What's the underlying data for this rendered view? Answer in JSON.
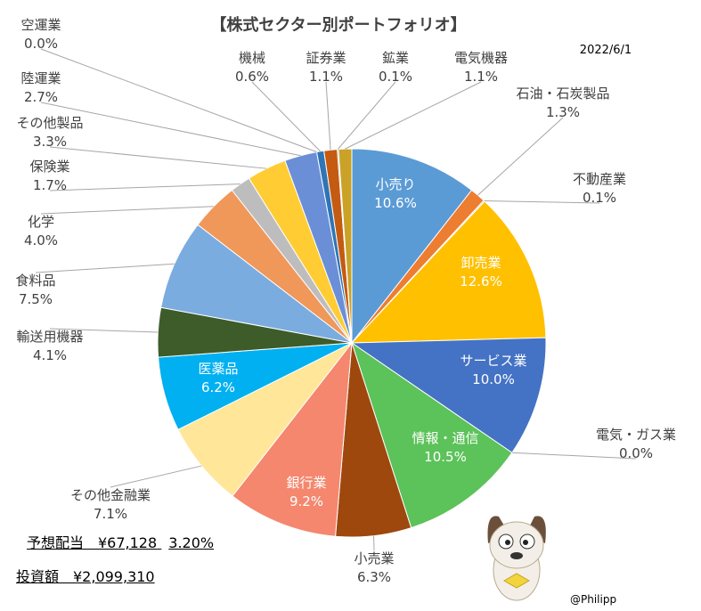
{
  "chart_data": {
    "type": "pie",
    "title": "【株式セクター別ポートフォリオ】",
    "date": "2022/6/1",
    "slices": [
      {
        "label": "小売り",
        "value": 10.6,
        "value_text": "10.6%",
        "color": "#5b9bd5"
      },
      {
        "label": "石油・石炭製品",
        "value": 1.3,
        "value_text": "1.3%",
        "color": "#ed7d31"
      },
      {
        "label": "不動産業",
        "value": 0.1,
        "value_text": "0.1%",
        "color": "#a5a5a5"
      },
      {
        "label": "卸売業",
        "value": 12.6,
        "value_text": "12.6%",
        "color": "#ffc000"
      },
      {
        "label": "サービス業",
        "value": 10.0,
        "value_text": "10.0%",
        "color": "#4472c4"
      },
      {
        "label": "電気・ガス業",
        "value": 0.0,
        "value_text": "0.0%",
        "color": "#70ad47"
      },
      {
        "label": "情報・通信",
        "value": 10.5,
        "value_text": "10.5%",
        "color": "#5cc25a"
      },
      {
        "label": "小売業",
        "value": 6.3,
        "value_text": "6.3%",
        "color": "#9e480e"
      },
      {
        "label": "銀行業",
        "value": 9.2,
        "value_text": "9.2%",
        "color": "#f4876e"
      },
      {
        "label": "その他金融業",
        "value": 7.1,
        "value_text": "7.1%",
        "color": "#ffe699"
      },
      {
        "label": "医薬品",
        "value": 6.2,
        "value_text": "6.2%",
        "color": "#00b0f0"
      },
      {
        "label": "輸送用機器",
        "value": 4.1,
        "value_text": "4.1%",
        "color": "#3d5c2a"
      },
      {
        "label": "食料品",
        "value": 7.5,
        "value_text": "7.5%",
        "color": "#7aace0"
      },
      {
        "label": "化学",
        "value": 4.0,
        "value_text": "4.0%",
        "color": "#f0975a"
      },
      {
        "label": "保険業",
        "value": 1.7,
        "value_text": "1.7%",
        "color": "#bdbdbd"
      },
      {
        "label": "その他製品",
        "value": 3.3,
        "value_text": "3.3%",
        "color": "#ffcc33"
      },
      {
        "label": "陸運業",
        "value": 2.7,
        "value_text": "2.7%",
        "color": "#6a8fd6"
      },
      {
        "label": "空運業",
        "value": 0.0,
        "value_text": "0.0%",
        "color": "#4a7cc9"
      },
      {
        "label": "機械",
        "value": 0.6,
        "value_text": "0.6%",
        "color": "#2e75b6"
      },
      {
        "label": "証券業",
        "value": 1.1,
        "value_text": "1.1%",
        "color": "#c55a11"
      },
      {
        "label": "鉱業",
        "value": 0.1,
        "value_text": "0.1%",
        "color": "#7f7f7f"
      },
      {
        "label": "電気機器",
        "value": 1.1,
        "value_text": "1.1%",
        "color": "#c9a227"
      }
    ]
  },
  "summary": {
    "dividend_text": "予想配当　¥67,128",
    "yield_text": "3.20%",
    "investment_text": "投資額　¥2,099,310"
  },
  "credit": "@Philipp"
}
